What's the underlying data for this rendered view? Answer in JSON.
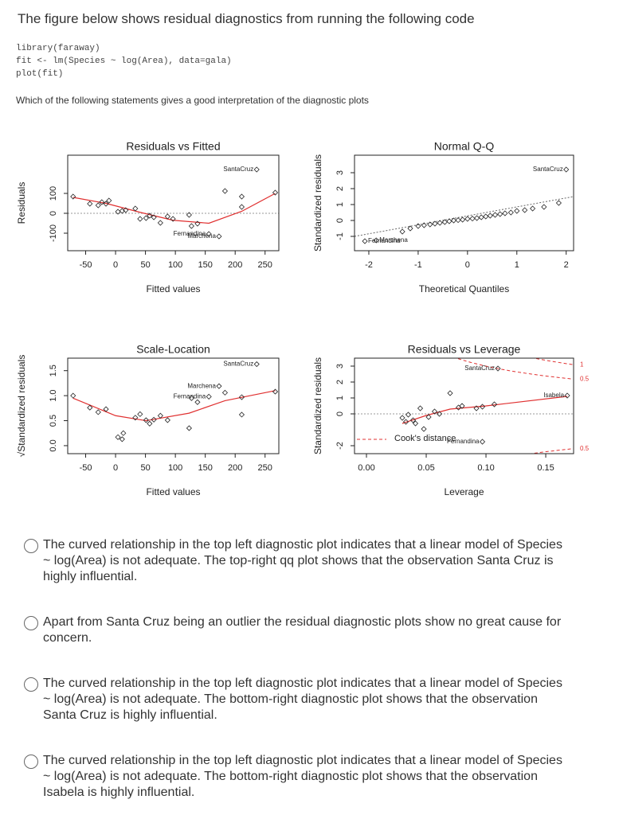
{
  "header": {
    "title": "The figure below shows residual diagnostics from running the following code"
  },
  "code": [
    "library(faraway)",
    "fit <- lm(Species ~ log(Area), data=gala)",
    "plot(fit)"
  ],
  "question": "Which of the following statements gives a good interpretation of the diagnostic plots",
  "options": [
    "The curved relationship in the top left diagnostic plot indicates that a linear model of Species ~ log(Area) is not adequate. The top-right  qq plot shows that the observation Santa Cruz is highly influential.",
    "Apart from Santa Cruz being an outlier the residual diagnostic plots show no great cause for concern.",
    "The curved relationship in the top left diagnostic plot indicates that a linear model of Species ~ log(Area) is not adequate. The bottom-right  diagnostic plot shows that the observation Santa Cruz is highly influential.",
    "The curved relationship in the top left diagnostic plot indicates that a linear model of Species ~ log(Area) is not adequate. The bottom-right  diagnostic plot shows that the observation Isabela is highly influential."
  ],
  "chart_data": [
    {
      "type": "scatter",
      "title": "Residuals vs Fitted",
      "xlabel": "Fitted values",
      "ylabel": "Residuals",
      "x": [
        -71,
        -43,
        -29,
        -23,
        -16,
        -11,
        4,
        11,
        17,
        33,
        41,
        51,
        57,
        64,
        75,
        87,
        96,
        123,
        127,
        137,
        156,
        173,
        183,
        211,
        211,
        236,
        267
      ],
      "values": [
        84,
        48,
        40,
        56,
        48,
        64,
        8,
        12,
        16,
        24,
        -28,
        -24,
        -12,
        -20,
        -48,
        -16,
        -28,
        -8,
        -64,
        -52,
        -104,
        -116,
        112,
        84,
        32,
        220,
        104
      ],
      "labels": [
        null,
        null,
        null,
        null,
        null,
        null,
        null,
        null,
        null,
        null,
        null,
        null,
        null,
        null,
        null,
        null,
        null,
        null,
        null,
        null,
        "Fernandina",
        "Marchena",
        null,
        null,
        null,
        "SantaCruz",
        null
      ],
      "smooth": {
        "x": [
          -71,
          -16,
          41,
          96,
          156,
          211,
          267
        ],
        "y": [
          80,
          50,
          5,
          -35,
          -50,
          10,
          100
        ]
      },
      "hline": 0,
      "xlim": [
        -80,
        273
      ],
      "ylim": [
        -188,
        292
      ],
      "xticks": [
        -50,
        0,
        50,
        100,
        150,
        200,
        250
      ],
      "yticks": [
        -100,
        0,
        100
      ]
    },
    {
      "type": "scatter",
      "title": "Normal Q-Q",
      "xlabel": "Theoretical Quantiles",
      "ylabel": "Standardized residuals",
      "x": [
        -2.08,
        -1.85,
        -1.32,
        -1.16,
        -1.0,
        -0.88,
        -0.76,
        -0.66,
        -0.56,
        -0.46,
        -0.37,
        -0.28,
        -0.19,
        -0.1,
        0,
        0.1,
        0.19,
        0.28,
        0.37,
        0.46,
        0.56,
        0.66,
        0.76,
        0.88,
        1.0,
        1.16,
        1.32,
        1.55,
        1.85,
        2.0
      ],
      "values": [
        -1.3,
        -1.25,
        -0.7,
        -0.5,
        -0.35,
        -0.3,
        -0.25,
        -0.2,
        -0.15,
        -0.1,
        -0.05,
        0,
        0.02,
        0.05,
        0.1,
        0.12,
        0.15,
        0.2,
        0.25,
        0.3,
        0.35,
        0.4,
        0.45,
        0.5,
        0.6,
        0.65,
        0.75,
        0.85,
        1.1,
        3.2
      ],
      "labels": [
        "Fernandina",
        "Marchena",
        null,
        null,
        null,
        null,
        null,
        null,
        null,
        null,
        null,
        null,
        null,
        null,
        null,
        null,
        null,
        null,
        null,
        null,
        null,
        null,
        null,
        null,
        null,
        null,
        null,
        null,
        null,
        "SantaCruz"
      ],
      "qqline": {
        "x": [
          -2.29,
          2.15
        ],
        "y": [
          -1.0,
          1.5
        ]
      },
      "xlim": [
        -2.29,
        2.15
      ],
      "ylim": [
        -1.9,
        4.1
      ],
      "xticks": [
        -2,
        -1,
        0,
        1,
        2
      ],
      "yticks": [
        -1,
        0,
        1,
        2,
        3
      ]
    },
    {
      "type": "scatter",
      "title": "Scale-Location",
      "xlabel": "Fitted values",
      "ylabel": "√Standardized residuals",
      "x": [
        -71,
        -43,
        -29,
        -16,
        4,
        11,
        13,
        33,
        41,
        51,
        57,
        64,
        75,
        87,
        123,
        127,
        137,
        156,
        173,
        183,
        211,
        211,
        236,
        267
      ],
      "values": [
        1.0,
        0.76,
        0.67,
        0.73,
        0.17,
        0.13,
        0.25,
        0.56,
        0.63,
        0.51,
        0.44,
        0.52,
        0.6,
        0.51,
        0.35,
        0.95,
        0.87,
        0.98,
        1.19,
        1.06,
        0.97,
        0.62,
        1.63,
        1.08
      ],
      "labels": [
        null,
        null,
        null,
        null,
        null,
        null,
        null,
        null,
        null,
        null,
        null,
        null,
        null,
        null,
        null,
        null,
        null,
        "Fernandina",
        "Marchena",
        null,
        null,
        null,
        "SantaCruz",
        null
      ],
      "smooth": {
        "x": [
          -71,
          0,
          51,
          123,
          183,
          267
        ],
        "y": [
          0.95,
          0.6,
          0.5,
          0.65,
          0.9,
          1.1
        ]
      },
      "xlim": [
        -80,
        273
      ],
      "ylim": [
        -0.16,
        1.75
      ],
      "xticks": [
        -50,
        0,
        50,
        100,
        150,
        200,
        250
      ],
      "yticks": [
        {
          "value": 0,
          "label": "0.0"
        },
        0.5,
        {
          "value": 1,
          "label": "1.0"
        },
        1.5
      ]
    },
    {
      "type": "scatter",
      "title": "Residuals vs Leverage",
      "xlabel": "Leverage",
      "ylabel": "Standardized residuals",
      "x": [
        0.03,
        0.033,
        0.035,
        0.039,
        0.041,
        0.045,
        0.048,
        0.052,
        0.057,
        0.061,
        0.07,
        0.077,
        0.08,
        0.092,
        0.097,
        0.107,
        0.097,
        0.11,
        0.168
      ],
      "values": [
        -0.25,
        -0.5,
        -0.05,
        -0.4,
        -0.6,
        0.35,
        -0.95,
        -0.2,
        0.15,
        0,
        1.3,
        0.4,
        0.5,
        0.35,
        0.45,
        0.6,
        -1.75,
        2.85,
        1.15
      ],
      "labels": [
        null,
        null,
        null,
        null,
        null,
        null,
        null,
        null,
        null,
        null,
        null,
        null,
        null,
        null,
        null,
        null,
        "Fernandina",
        "SantaCruz",
        "Isabela"
      ],
      "smooth": {
        "x": [
          0.03,
          0.05,
          0.07,
          0.1,
          0.168
        ],
        "y": [
          -0.6,
          -0.1,
          0.3,
          0.5,
          1.1
        ]
      },
      "hline": 0,
      "legend": "Cook's distance",
      "cook_levels": [
        0.5,
        1
      ],
      "xlim": [
        -0.01,
        0.1733
      ],
      "ylim": [
        -2.5,
        3.5
      ],
      "xticks": [
        {
          "value": 0,
          "label": "0.00"
        },
        0.05,
        {
          "value": 0.1,
          "label": "0.10"
        },
        0.15
      ],
      "yticks": [
        -2,
        0,
        1,
        2,
        3
      ]
    }
  ]
}
